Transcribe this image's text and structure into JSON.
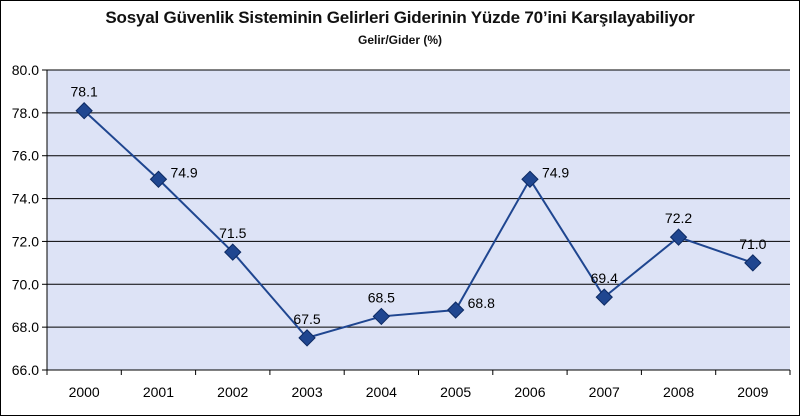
{
  "chart_data": {
    "type": "line",
    "title": "Sosyal Güvenlik Sisteminin Gelirleri Giderinin Yüzde 70’ini Karşılayabiliyor",
    "subtitle": "Gelir/Gider (%)",
    "xlabel": "",
    "ylabel": "",
    "categories": [
      "2000",
      "2001",
      "2002",
      "2003",
      "2004",
      "2005",
      "2006",
      "2007",
      "2008",
      "2009"
    ],
    "series": [
      {
        "values": [
          78.1,
          74.9,
          71.5,
          67.5,
          68.5,
          68.8,
          74.9,
          69.4,
          72.2,
          71.0
        ]
      }
    ],
    "data_labels": [
      "78.1",
      "74.9",
      "71.5",
      "67.5",
      "68.5",
      "68.8",
      "74.9",
      "69.4",
      "72.2",
      "71.0"
    ],
    "label_positions": [
      "above",
      "right",
      "above",
      "above",
      "above",
      "right",
      "right",
      "above",
      "above",
      "above"
    ],
    "ylim": [
      66.0,
      80.0
    ],
    "yticks": [
      66.0,
      68.0,
      70.0,
      72.0,
      74.0,
      76.0,
      78.0,
      80.0
    ],
    "ytick_labels": [
      "66.0",
      "68.0",
      "70.0",
      "72.0",
      "74.0",
      "76.0",
      "78.0",
      "80.0"
    ],
    "grid": true,
    "legend": "none",
    "colors": {
      "plot_background": "#dde3f6",
      "line": "#1f4690",
      "marker": "#1f4690",
      "grid": "#000000"
    },
    "marker": "diamond-icon"
  }
}
